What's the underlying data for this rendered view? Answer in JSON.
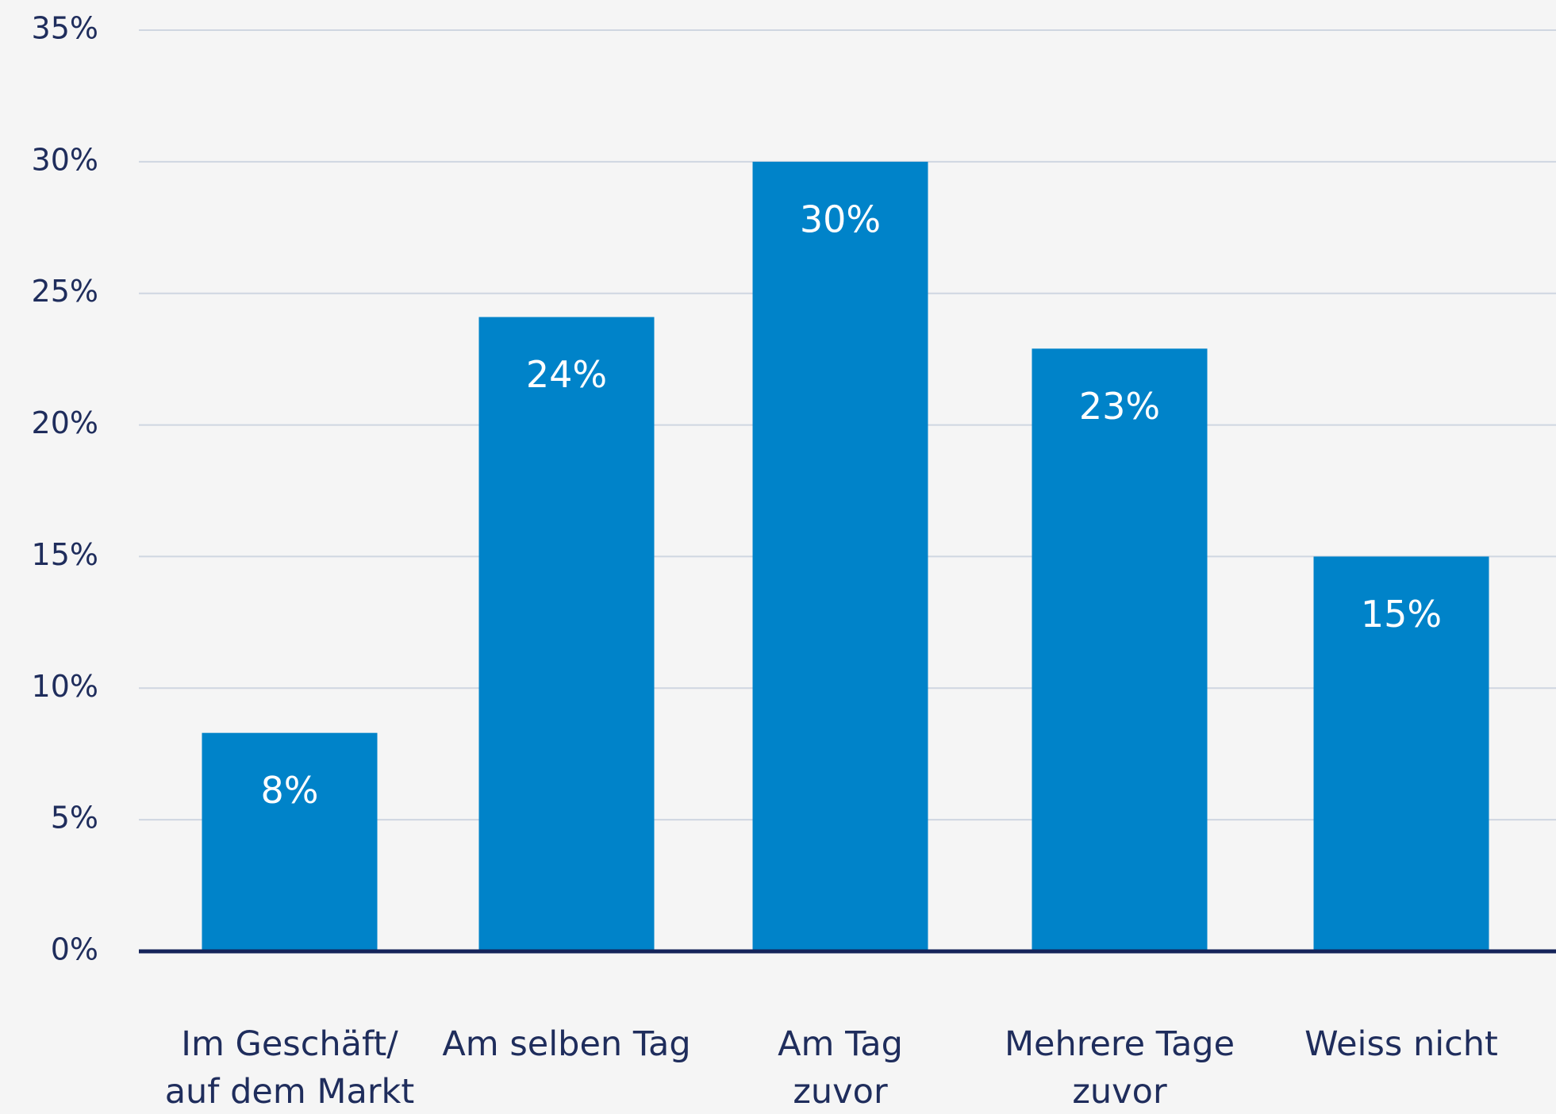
{
  "chart_data": {
    "type": "bar",
    "categories": [
      "Im Geschäft/\nauf dem Markt",
      "Am selben Tag",
      "Am Tag\nzuvor",
      "Mehrere Tage\nzuvor",
      "Weiss nicht"
    ],
    "values": [
      8.3,
      24.1,
      30,
      22.9,
      15
    ],
    "value_labels": [
      "8%",
      "24%",
      "30%",
      "23%",
      "15%"
    ],
    "color": "#0083c9",
    "ylim": [
      0,
      35
    ],
    "yticks": [
      {
        "value": 0,
        "label": "0%"
      },
      {
        "value": 5,
        "label": "5%"
      },
      {
        "value": 10,
        "label": "10%"
      },
      {
        "value": 15,
        "label": "15%"
      },
      {
        "value": 20,
        "label": "20%"
      },
      {
        "value": 25,
        "label": "25%"
      },
      {
        "value": 30,
        "label": "30%"
      },
      {
        "value": 35,
        "label": "35%"
      }
    ],
    "grid": true
  }
}
